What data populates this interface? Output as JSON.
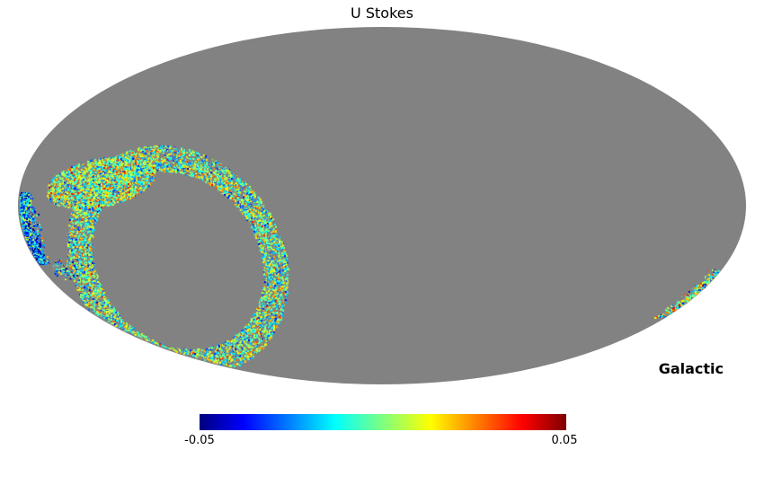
{
  "chart_data": {
    "type": "heatmap",
    "title": "U Stokes",
    "projection": "mollweide",
    "coordinate_system": "Galactic",
    "colormap": "jet",
    "colorbar": {
      "min": -0.05,
      "max": 0.05,
      "min_label": "-0.05",
      "max_label": "0.05",
      "stops": [
        "#00007f",
        "#0000ff",
        "#00ffff",
        "#7fff7f",
        "#ffff00",
        "#ff0000",
        "#7f0000"
      ],
      "stop_positions": [
        0,
        12,
        37,
        50,
        63,
        88,
        100
      ]
    },
    "background_value_color": "#828282",
    "page_background": "#ffffff",
    "description": "Partial-sky HEALPix Stokes-U map in Mollweide projection; a noisy multicolored scan ring occupies the lower-left of the gray (unobserved) sky ellipse, with small observed patches at the far-left and far-right ellipse edges."
  }
}
